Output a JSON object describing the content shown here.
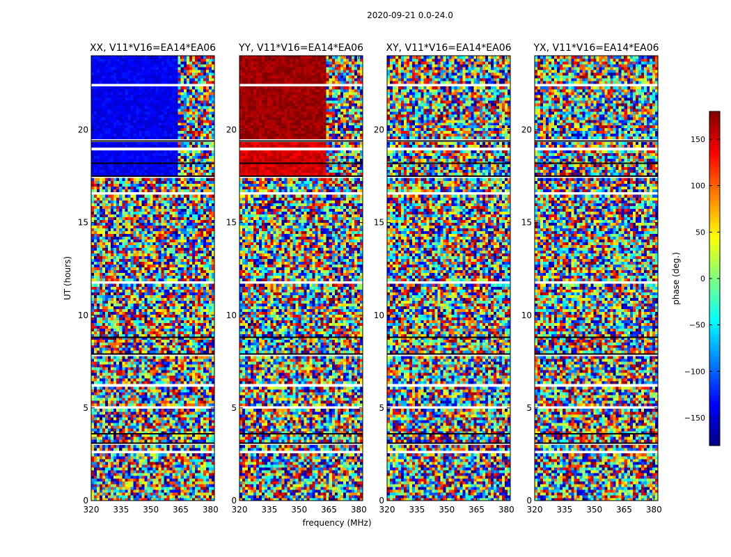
{
  "figure_title": "2020-09-21 0.0-24.0",
  "colorbar": {
    "label": "phase (deg.)",
    "ticks": [
      150,
      100,
      50,
      0,
      -50,
      -100,
      -150
    ],
    "tick_labels": [
      "150",
      "100",
      "50",
      "0",
      "−50",
      "−100",
      "−150"
    ],
    "range": [
      -180,
      180
    ],
    "colormap": "jet"
  },
  "chart_data": [
    {
      "type": "heatmap",
      "title": "XX, V11*V16=EA14*EA06",
      "xlabel": "",
      "ylabel": "UT (hours)",
      "xlim": [
        320,
        382
      ],
      "ylim": [
        0,
        24
      ],
      "xticks": [
        320,
        335,
        350,
        365,
        380
      ],
      "yticks": [
        0,
        5,
        10,
        15,
        20
      ],
      "zlabel": "phase (deg.)",
      "zlim": [
        -180,
        180
      ],
      "coherent_regions": [
        {
          "t_range": [
            19.4,
            24.0
          ],
          "f_range": [
            320,
            363
          ],
          "phase": -140
        },
        {
          "t_range": [
            17.5,
            19.3
          ],
          "f_range": [
            320,
            363
          ],
          "phase": -140
        }
      ]
    },
    {
      "type": "heatmap",
      "title": "YY, V11*V16=EA14*EA06",
      "xlabel": "frequency (MHz)",
      "ylabel": "",
      "xlim": [
        320,
        382
      ],
      "ylim": [
        0,
        24
      ],
      "xticks": [
        320,
        335,
        350,
        365,
        380
      ],
      "yticks": [
        0,
        5,
        10,
        15,
        20
      ],
      "zlabel": "phase (deg.)",
      "zlim": [
        -180,
        180
      ],
      "coherent_regions": [
        {
          "t_range": [
            19.4,
            24.0
          ],
          "f_range": [
            320,
            363
          ],
          "phase": 170
        },
        {
          "t_range": [
            17.5,
            19.3
          ],
          "f_range": [
            320,
            363
          ],
          "phase": 150
        }
      ]
    },
    {
      "type": "heatmap",
      "title": "XY, V11*V16=EA14*EA06",
      "xlabel": "",
      "ylabel": "",
      "xlim": [
        320,
        382
      ],
      "ylim": [
        0,
        24
      ],
      "xticks": [
        320,
        335,
        350,
        365,
        380
      ],
      "yticks": [
        0,
        5,
        10,
        15,
        20
      ],
      "zlabel": "phase (deg.)",
      "zlim": [
        -180,
        180
      ],
      "coherent_regions": []
    },
    {
      "type": "heatmap",
      "title": "YX, V11*V16=EA14*EA06",
      "xlabel": "",
      "ylabel": "",
      "xlim": [
        320,
        382
      ],
      "ylim": [
        0,
        24
      ],
      "xticks": [
        320,
        335,
        350,
        365,
        380
      ],
      "yticks": [
        0,
        5,
        10,
        15,
        20
      ],
      "zlabel": "phase (deg.)",
      "zlim": [
        -180,
        180
      ],
      "coherent_regions": []
    }
  ]
}
